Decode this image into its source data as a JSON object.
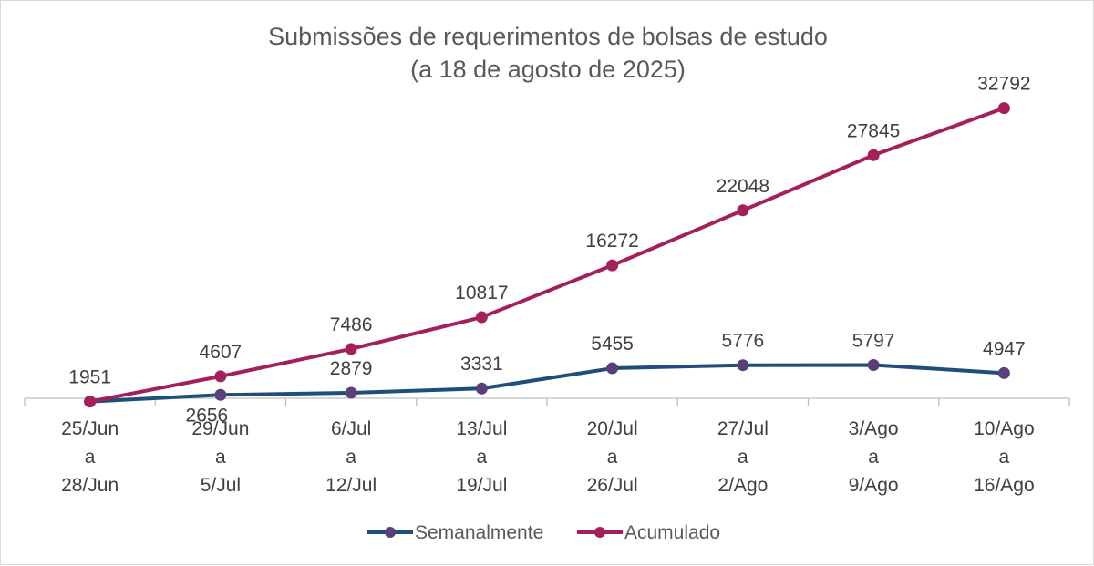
{
  "chart_data": {
    "type": "line",
    "title": "Submissões de requerimentos de bolsas de estudo",
    "subtitle": "(a 18 de agosto de 2025)",
    "categories": [
      [
        "25/Jun",
        "a",
        "28/Jun"
      ],
      [
        "29/Jun",
        "a",
        "5/Jul"
      ],
      [
        "6/Jul",
        "a",
        "12/Jul"
      ],
      [
        "13/Jul",
        "a",
        "19/Jul"
      ],
      [
        "20/Jul",
        "a",
        "26/Jul"
      ],
      [
        "27/Jul",
        "a",
        "2/Ago"
      ],
      [
        "3/Ago",
        "a",
        "9/Ago"
      ],
      [
        "10/Ago",
        "a",
        "16/Ago"
      ]
    ],
    "series": [
      {
        "name": "Semanalmente",
        "color": "#1f4e79",
        "marker_color": "#5b3f7a",
        "values": [
          1951,
          2656,
          2879,
          3331,
          5455,
          5776,
          5797,
          4947
        ],
        "label_placement": [
          "above",
          "below",
          "above",
          "above",
          "above",
          "above",
          "above",
          "above"
        ]
      },
      {
        "name": "Acumulado",
        "color": "#a3205a",
        "marker_color": "#a3205a",
        "values": [
          1951,
          4607,
          7486,
          10817,
          16272,
          22048,
          27845,
          32792
        ],
        "label_placement": [
          "none",
          "above",
          "above",
          "above",
          "above",
          "above",
          "above",
          "above"
        ]
      }
    ],
    "ylim": [
      0,
      34000
    ],
    "y_axis_visible": false,
    "grid": false,
    "legend_position": "bottom"
  }
}
